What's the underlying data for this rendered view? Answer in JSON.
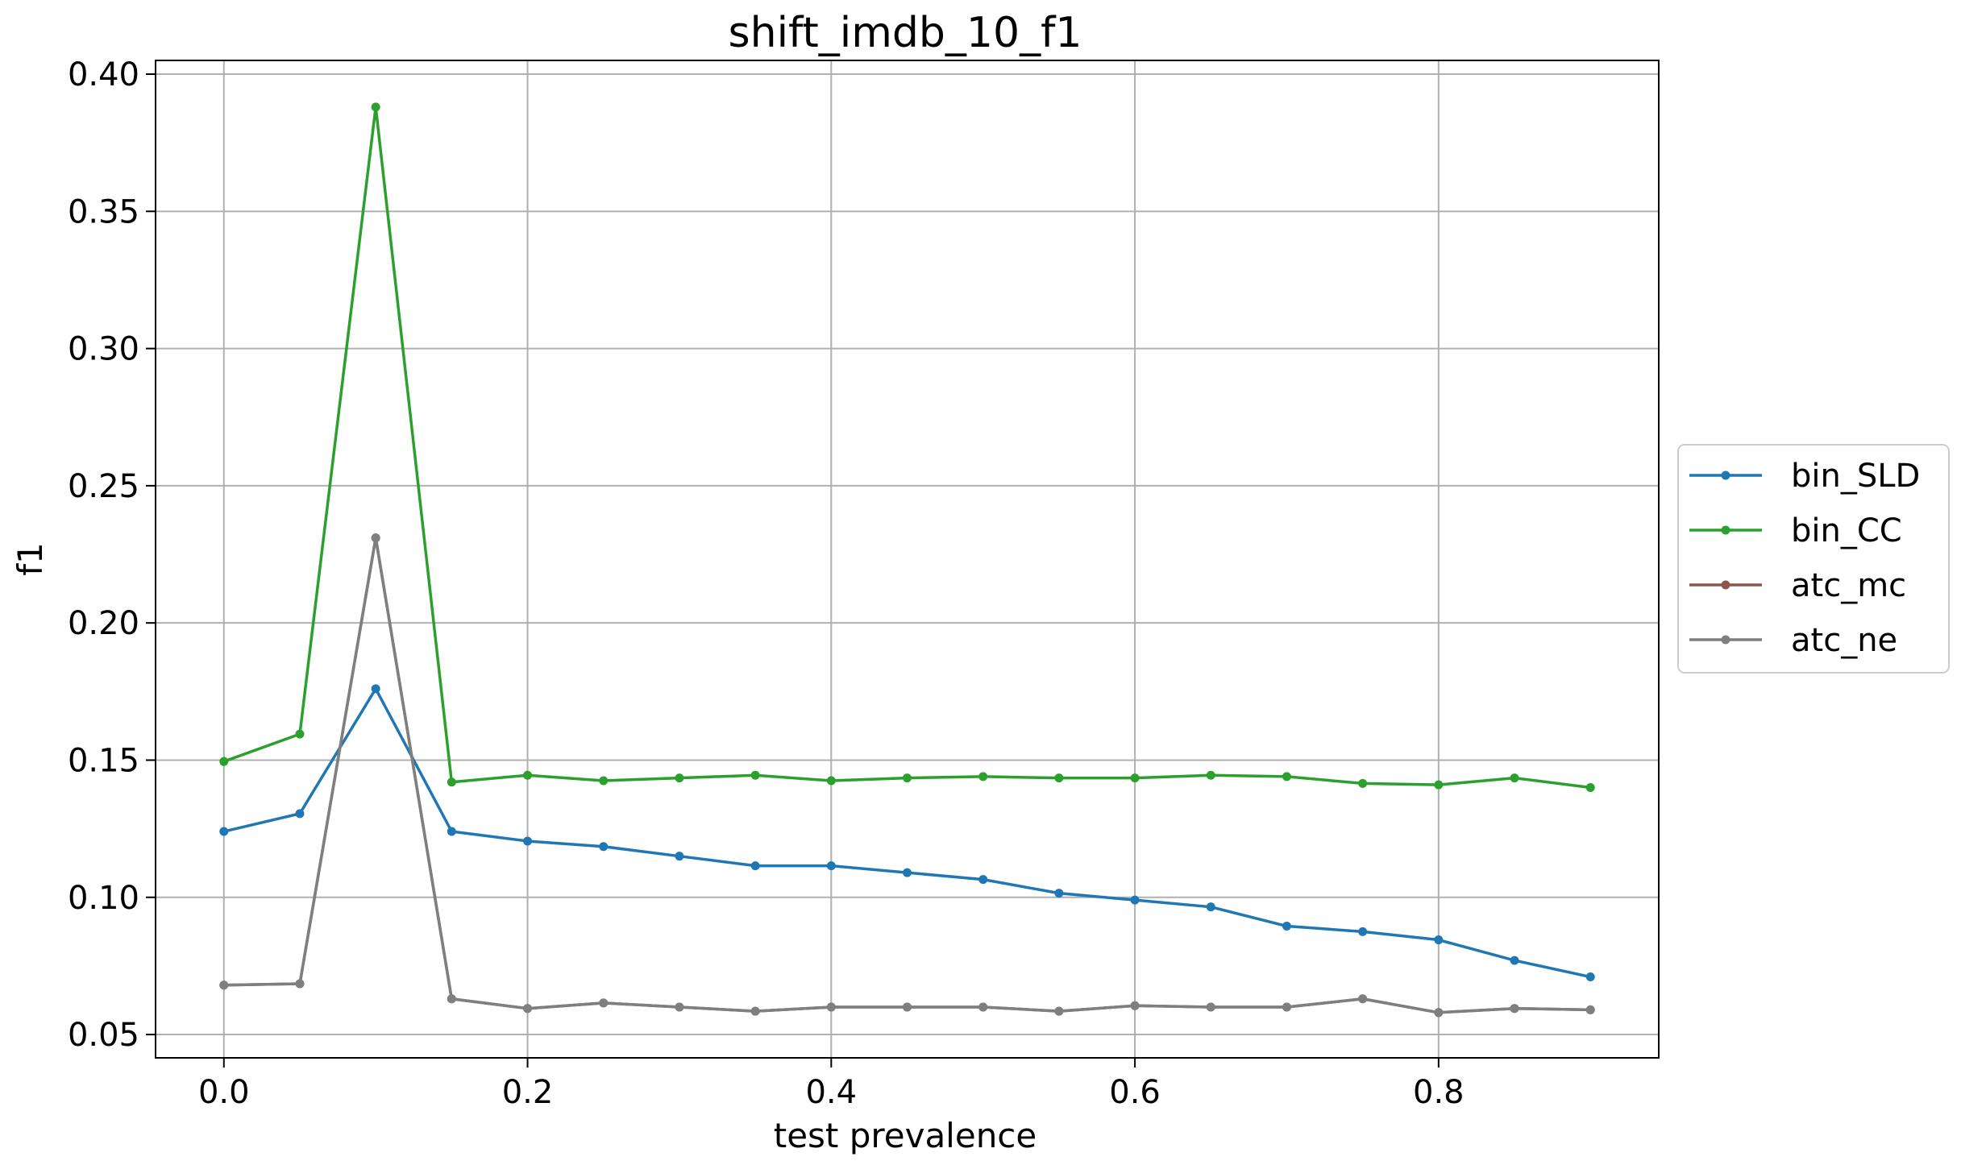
{
  "chart_data": {
    "type": "line",
    "title": "shift_imdb_10_f1",
    "xlabel": "test prevalence",
    "ylabel": "f1",
    "xlim": [
      -0.045,
      0.945
    ],
    "ylim": [
      0.0415,
      0.405
    ],
    "x_ticks": [
      0.0,
      0.2,
      0.4,
      0.6,
      0.8
    ],
    "x_tick_labels": [
      "0.0",
      "0.2",
      "0.4",
      "0.6",
      "0.8"
    ],
    "y_ticks": [
      0.05,
      0.1,
      0.15,
      0.2,
      0.25,
      0.3,
      0.35,
      0.4
    ],
    "y_tick_labels": [
      "0.05",
      "0.10",
      "0.15",
      "0.20",
      "0.25",
      "0.30",
      "0.35",
      "0.40"
    ],
    "grid": true,
    "legend_position": "outside-right",
    "x": [
      0.0,
      0.05,
      0.1,
      0.15,
      0.2,
      0.25,
      0.3,
      0.35,
      0.4,
      0.45,
      0.5,
      0.55,
      0.6,
      0.65,
      0.7,
      0.75,
      0.8,
      0.85,
      0.9
    ],
    "series": [
      {
        "name": "bin_SLD",
        "color": "#1f77b4",
        "values": [
          0.124,
          0.1305,
          0.176,
          0.124,
          0.1205,
          0.1185,
          0.115,
          0.1115,
          0.1115,
          0.109,
          0.1065,
          0.1015,
          0.099,
          0.0965,
          0.0895,
          0.0875,
          0.0845,
          0.077,
          0.071
        ]
      },
      {
        "name": "bin_CC",
        "color": "#2ca02c",
        "values": [
          0.1495,
          0.1595,
          0.388,
          0.142,
          0.1445,
          0.1425,
          0.1435,
          0.1445,
          0.1425,
          0.1435,
          0.144,
          0.1435,
          0.1435,
          0.1445,
          0.144,
          0.1415,
          0.141,
          0.1435,
          0.14
        ]
      },
      {
        "name": "atc_mc",
        "color": "#8c564b",
        "values": [
          0.068,
          0.0685,
          0.231,
          0.063,
          0.0595,
          0.0615,
          0.06,
          0.0585,
          0.06,
          0.06,
          0.06,
          0.0585,
          0.0605,
          0.06,
          0.06,
          0.063,
          0.058,
          0.0595,
          0.059
        ]
      },
      {
        "name": "atc_ne",
        "color": "#7f7f7f",
        "values": [
          0.068,
          0.0685,
          0.231,
          0.063,
          0.0595,
          0.0615,
          0.06,
          0.0585,
          0.06,
          0.06,
          0.06,
          0.0585,
          0.0605,
          0.06,
          0.06,
          0.063,
          0.058,
          0.0595,
          0.059
        ]
      }
    ]
  }
}
